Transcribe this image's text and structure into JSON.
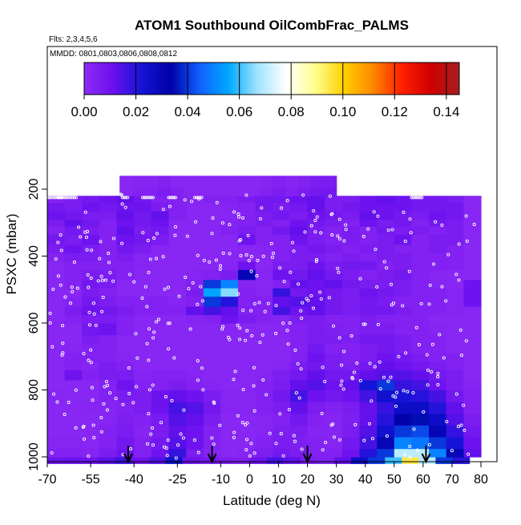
{
  "chart_data": {
    "type": "heatmap",
    "title": "ATOM1 Southbound OilCombFrac_PALMS",
    "subtitle_flights": "Flts: 2,3,4,5,6",
    "subtitle_dates": "MMDD: 0801,0803,0806,0808,0812",
    "xlabel": "Latitude (deg N)",
    "ylabel": "PSXC (mbar)",
    "xlim": [
      -70,
      82
    ],
    "ylim": [
      1020,
      80
    ],
    "x_ticks": [
      -70,
      -55,
      -40,
      -25,
      -10,
      0,
      10,
      20,
      30,
      40,
      50,
      60,
      70,
      80
    ],
    "y_ticks": [
      200,
      400,
      600,
      800,
      1000
    ],
    "colorbar": {
      "range": [
        0,
        0.145
      ],
      "ticks": [
        0.0,
        0.02,
        0.04,
        0.06,
        0.08,
        0.1,
        0.12,
        0.14
      ],
      "tick_labels": [
        "0.00",
        "0.02",
        "0.04",
        "0.06",
        "0.08",
        "0.10",
        "0.12",
        "0.14"
      ]
    },
    "colormap": [
      "#8f2bf5",
      "#6a10ee",
      "#1414d6",
      "#0000a8",
      "#1060ff",
      "#00a8ff",
      "#a0e4ff",
      "#ffffff",
      "#ffff90",
      "#ffd000",
      "#ff8800",
      "#ff2000",
      "#d00000",
      "#a31e1e"
    ],
    "levels_mbar": [
      160,
      220,
      240,
      265,
      290,
      310,
      335,
      365,
      390,
      415,
      440,
      460,
      485,
      515,
      540,
      570,
      600,
      625,
      650,
      675,
      700,
      725,
      755,
      780,
      805,
      835,
      860,
      885,
      915,
      940,
      965,
      990,
      1015
    ],
    "lat_grid": [
      -70,
      -62,
      -55,
      -48,
      -42,
      -36,
      -30,
      -24,
      -18,
      -12,
      -6,
      0,
      6,
      12,
      18,
      24,
      30,
      36,
      42,
      48,
      54,
      60,
      66,
      72,
      78
    ],
    "rows": [
      {
        "p": [
          1000,
          1020
        ],
        "lat": [
          -70,
          76
        ],
        "v": [
          0.01,
          0.011,
          0.01,
          0.013,
          0.017,
          0.01,
          0.014,
          0.024,
          0.01,
          0.008,
          0.006,
          0.005,
          0.01,
          0.016,
          0.012,
          0.006,
          0.005,
          0.012,
          0.026,
          0.04,
          0.06,
          0.095,
          0.07,
          0.04,
          0.02
        ]
      },
      {
        "p": [
          975,
          1000
        ],
        "lat": [
          -70,
          80
        ],
        "v": [
          0.004,
          0.004,
          0.003,
          0.006,
          0.01,
          0.004,
          0.01,
          0.018,
          0.006,
          0.003,
          0.002,
          0.003,
          0.005,
          0.008,
          0.006,
          0.004,
          0.004,
          0.01,
          0.02,
          0.04,
          0.07,
          0.07,
          0.05,
          0.03,
          0.012
        ]
      },
      {
        "p": [
          940,
          975
        ],
        "lat": [
          -70,
          80
        ],
        "v": [
          0.003,
          0.003,
          0.002,
          0.004,
          0.008,
          0.004,
          0.008,
          0.014,
          0.01,
          0.004,
          0.002,
          0.002,
          0.004,
          0.006,
          0.005,
          0.004,
          0.003,
          0.008,
          0.016,
          0.03,
          0.05,
          0.048,
          0.04,
          0.022,
          0.01
        ]
      },
      {
        "p": [
          905,
          940
        ],
        "lat": [
          -70,
          80
        ],
        "v": [
          0.002,
          0.002,
          0.002,
          0.004,
          0.006,
          0.003,
          0.006,
          0.012,
          0.01,
          0.004,
          0.002,
          0.002,
          0.003,
          0.005,
          0.006,
          0.003,
          0.003,
          0.006,
          0.014,
          0.024,
          0.04,
          0.042,
          0.03,
          0.018,
          0.008
        ]
      },
      {
        "p": [
          870,
          905
        ],
        "lat": [
          -70,
          80
        ],
        "v": [
          0.002,
          0.002,
          0.002,
          0.003,
          0.005,
          0.004,
          0.007,
          0.014,
          0.012,
          0.006,
          0.002,
          0.002,
          0.003,
          0.004,
          0.008,
          0.004,
          0.003,
          0.005,
          0.012,
          0.02,
          0.032,
          0.035,
          0.026,
          0.014,
          0.006
        ]
      },
      {
        "p": [
          835,
          870
        ],
        "lat": [
          -70,
          80
        ],
        "v": [
          0.002,
          0.002,
          0.003,
          0.003,
          0.004,
          0.006,
          0.01,
          0.016,
          0.014,
          0.008,
          0.003,
          0.003,
          0.004,
          0.006,
          0.012,
          0.006,
          0.004,
          0.006,
          0.012,
          0.018,
          0.026,
          0.026,
          0.02,
          0.012,
          0.004
        ]
      },
      {
        "p": [
          800,
          835
        ],
        "lat": [
          -70,
          80
        ],
        "v": [
          0.003,
          0.002,
          0.002,
          0.004,
          0.006,
          0.006,
          0.01,
          0.012,
          0.01,
          0.006,
          0.003,
          0.003,
          0.004,
          0.008,
          0.016,
          0.01,
          0.008,
          0.01,
          0.016,
          0.024,
          0.022,
          0.02,
          0.016,
          0.008,
          0.004
        ]
      },
      {
        "p": [
          770,
          800
        ],
        "lat": [
          -70,
          80
        ],
        "v": [
          0.002,
          0.002,
          0.002,
          0.004,
          0.01,
          0.004,
          0.004,
          0.006,
          0.004,
          0.003,
          0.002,
          0.002,
          0.004,
          0.006,
          0.012,
          0.014,
          0.01,
          0.012,
          0.022,
          0.04,
          0.018,
          0.016,
          0.01,
          0.006,
          0.003
        ]
      },
      {
        "p": [
          740,
          770
        ],
        "lat": [
          -70,
          80
        ],
        "v": [
          0.002,
          0.01,
          0.004,
          0.006,
          0.006,
          0.003,
          0.004,
          0.004,
          0.003,
          0.002,
          0.002,
          0.002,
          0.003,
          0.005,
          0.008,
          0.012,
          0.008,
          0.008,
          0.012,
          0.014,
          0.014,
          0.012,
          0.008,
          0.006,
          0.002
        ]
      },
      {
        "p": [
          715,
          740
        ],
        "lat": [
          -70,
          80
        ],
        "v": [
          0.002,
          0.004,
          0.003,
          0.006,
          0.004,
          0.002,
          0.002,
          0.002,
          0.002,
          0.002,
          0.002,
          0.002,
          0.002,
          0.003,
          0.006,
          0.008,
          0.006,
          0.005,
          0.008,
          0.012,
          0.01,
          0.008,
          0.006,
          0.004,
          0.002
        ]
      },
      {
        "p": [
          690,
          715
        ],
        "lat": [
          -70,
          80
        ],
        "v": [
          0.002,
          0.004,
          0.004,
          0.004,
          0.003,
          0.002,
          0.002,
          0.002,
          0.002,
          0.002,
          0.002,
          0.002,
          0.002,
          0.002,
          0.004,
          0.01,
          0.006,
          0.004,
          0.006,
          0.01,
          0.008,
          0.006,
          0.004,
          0.004,
          0.002
        ]
      },
      {
        "p": [
          660,
          690
        ],
        "lat": [
          -70,
          80
        ],
        "v": [
          0.002,
          0.003,
          0.004,
          0.004,
          0.002,
          0.002,
          0.002,
          0.002,
          0.002,
          0.002,
          0.002,
          0.002,
          0.002,
          0.002,
          0.004,
          0.008,
          0.004,
          0.004,
          0.006,
          0.008,
          0.006,
          0.004,
          0.004,
          0.002,
          0.002
        ]
      },
      {
        "p": [
          635,
          660
        ],
        "lat": [
          -70,
          80
        ],
        "v": [
          0.002,
          0.002,
          0.006,
          0.004,
          0.002,
          0.002,
          0.002,
          0.002,
          0.002,
          0.002,
          0.002,
          0.002,
          0.002,
          0.002,
          0.004,
          0.006,
          0.006,
          0.005,
          0.008,
          0.008,
          0.006,
          0.004,
          0.004,
          0.002,
          0.002
        ]
      },
      {
        "p": [
          600,
          635
        ],
        "lat": [
          -70,
          80
        ],
        "v": [
          0.002,
          0.002,
          0.008,
          0.01,
          0.004,
          0.002,
          0.002,
          0.002,
          0.002,
          0.002,
          0.002,
          0.002,
          0.002,
          0.002,
          0.004,
          0.006,
          0.005,
          0.004,
          0.006,
          0.006,
          0.004,
          0.004,
          0.003,
          0.002,
          0.002
        ]
      },
      {
        "p": [
          575,
          600
        ],
        "lat": [
          -70,
          80
        ],
        "v": [
          0.002,
          0.004,
          0.006,
          0.006,
          0.004,
          0.002,
          0.002,
          0.002,
          0.003,
          0.004,
          0.01,
          0.006,
          0.004,
          0.003,
          0.006,
          0.006,
          0.004,
          0.004,
          0.006,
          0.004,
          0.004,
          0.004,
          0.002,
          0.002,
          0.002
        ]
      },
      {
        "p": [
          550,
          575
        ],
        "lat": [
          -70,
          80
        ],
        "v": [
          0.002,
          0.006,
          0.01,
          0.008,
          0.006,
          0.004,
          0.004,
          0.004,
          0.012,
          0.016,
          0.012,
          0.004,
          0.004,
          0.016,
          0.01,
          0.012,
          0.008,
          0.006,
          0.008,
          0.008,
          0.006,
          0.004,
          0.004,
          0.003,
          0.002
        ]
      },
      {
        "p": [
          520,
          550
        ],
        "lat": [
          -70,
          80
        ],
        "v": [
          0.002,
          0.004,
          0.008,
          0.006,
          0.004,
          0.004,
          0.004,
          0.003,
          0.004,
          0.04,
          0.02,
          0.004,
          0.004,
          0.012,
          0.014,
          0.012,
          0.008,
          0.006,
          0.008,
          0.006,
          0.004,
          0.004,
          0.004,
          0.003,
          0.01
        ]
      },
      {
        "p": [
          495,
          520
        ],
        "lat": [
          -70,
          80
        ],
        "v": [
          0.002,
          0.002,
          0.006,
          0.004,
          0.002,
          0.002,
          0.002,
          0.002,
          0.006,
          0.055,
          0.065,
          0.004,
          0.003,
          0.018,
          0.008,
          0.01,
          0.008,
          0.006,
          0.01,
          0.008,
          0.006,
          0.004,
          0.004,
          0.003,
          0.01
        ]
      },
      {
        "p": [
          470,
          495
        ],
        "lat": [
          -70,
          80
        ],
        "v": [
          0.002,
          0.004,
          0.008,
          0.006,
          0.002,
          0.002,
          0.002,
          0.002,
          0.004,
          0.04,
          0.05,
          0.003,
          0.002,
          0.004,
          0.012,
          0.01,
          0.012,
          0.008,
          0.006,
          0.006,
          0.006,
          0.004,
          0.003,
          0.002,
          0.01
        ]
      },
      {
        "p": [
          440,
          470
        ],
        "lat": [
          -70,
          80
        ],
        "v": [
          0.002,
          0.004,
          0.006,
          0.006,
          0.004,
          0.002,
          0.002,
          0.002,
          0.003,
          0.004,
          0.006,
          0.03,
          0.003,
          0.01,
          0.008,
          0.012,
          0.008,
          0.006,
          0.004,
          0.006,
          0.008,
          0.004,
          0.003,
          0.002,
          0.002
        ]
      },
      {
        "p": [
          415,
          440
        ],
        "lat": [
          -70,
          80
        ],
        "v": [
          0.002,
          0.004,
          0.004,
          0.004,
          0.004,
          0.003,
          0.002,
          0.002,
          0.002,
          0.002,
          0.003,
          0.01,
          0.002,
          0.006,
          0.006,
          0.01,
          0.006,
          0.008,
          0.008,
          0.004,
          0.006,
          0.004,
          0.004,
          0.004,
          0.002
        ]
      },
      {
        "p": [
          390,
          415
        ],
        "lat": [
          -70,
          80
        ],
        "v": [
          0.004,
          0.006,
          0.006,
          0.004,
          0.006,
          0.003,
          0.002,
          0.002,
          0.002,
          0.002,
          0.002,
          0.002,
          0.002,
          0.004,
          0.006,
          0.006,
          0.004,
          0.006,
          0.004,
          0.006,
          0.006,
          0.004,
          0.004,
          0.004,
          0.002
        ]
      },
      {
        "p": [
          365,
          390
        ],
        "lat": [
          -70,
          80
        ],
        "v": [
          0.006,
          0.01,
          0.006,
          0.004,
          0.008,
          0.006,
          0.003,
          0.002,
          0.002,
          0.002,
          0.002,
          0.002,
          0.003,
          0.004,
          0.006,
          0.008,
          0.006,
          0.004,
          0.006,
          0.006,
          0.004,
          0.004,
          0.006,
          0.004,
          0.002
        ]
      },
      {
        "p": [
          335,
          365
        ],
        "lat": [
          -70,
          80
        ],
        "v": [
          0.008,
          0.006,
          0.01,
          0.004,
          0.01,
          0.008,
          0.006,
          0.002,
          0.002,
          0.002,
          0.002,
          0.01,
          0.004,
          0.004,
          0.01,
          0.006,
          0.004,
          0.006,
          0.004,
          0.006,
          0.01,
          0.004,
          0.006,
          0.006,
          0.002
        ]
      },
      {
        "p": [
          310,
          335
        ],
        "lat": [
          -70,
          80
        ],
        "v": [
          0.004,
          0.008,
          0.006,
          0.004,
          0.012,
          0.006,
          0.008,
          0.002,
          0.002,
          0.002,
          0.004,
          0.006,
          0.004,
          0.008,
          0.012,
          0.006,
          0.004,
          0.006,
          0.004,
          0.008,
          0.006,
          0.006,
          0.004,
          0.006,
          0.002
        ]
      },
      {
        "p": [
          290,
          310
        ],
        "lat": [
          -70,
          80
        ],
        "v": [
          0.006,
          0.012,
          0.008,
          0.004,
          0.01,
          0.008,
          0.01,
          0.002,
          0.002,
          0.002,
          0.003,
          0.004,
          0.006,
          0.004,
          0.01,
          0.008,
          0.006,
          0.004,
          0.01,
          0.006,
          0.008,
          0.004,
          0.008,
          0.006,
          0.002
        ]
      },
      {
        "p": [
          265,
          290
        ],
        "lat": [
          -70,
          80
        ],
        "v": [
          0.01,
          0.008,
          0.006,
          0.006,
          0.012,
          0.008,
          0.012,
          0.004,
          0.002,
          0.002,
          0.002,
          0.004,
          0.006,
          0.008,
          0.006,
          0.01,
          0.008,
          0.006,
          0.012,
          0.01,
          0.008,
          0.006,
          0.01,
          0.008,
          0.002
        ]
      },
      {
        "p": [
          240,
          265
        ],
        "lat": [
          -70,
          80
        ],
        "v": [
          0.008,
          0.006,
          0.01,
          0.008,
          0.01,
          0.01,
          0.006,
          0.004,
          0.002,
          0.002,
          0.003,
          0.004,
          0.008,
          0.006,
          0.008,
          0.012,
          0.006,
          0.008,
          0.01,
          0.01,
          0.01,
          0.008,
          0.008,
          0.008,
          0.002
        ]
      },
      {
        "p": [
          220,
          240
        ],
        "lat": [
          -70,
          80
        ],
        "v": [
          0.004,
          0.006,
          0.008,
          0.01,
          0.012,
          0.008,
          0.004,
          0.004,
          0.003,
          0.004,
          0.004,
          0.006,
          0.008,
          0.008,
          0.01,
          0.012,
          0.006,
          0.006,
          0.01,
          0.012,
          0.01,
          0.008,
          0.008,
          0.006,
          0.002
        ]
      },
      {
        "p": [
          195,
          220
        ],
        "lat": [
          -45,
          30
        ],
        "v": [
          0.002,
          0.004,
          0.004,
          0.006,
          0.004,
          0.002,
          0.002,
          0.002,
          0.002,
          0.002,
          0.002,
          0.004,
          0.006,
          0.004,
          0.006,
          0.008,
          0.008
        ]
      },
      {
        "p": [
          160,
          195
        ],
        "lat": [
          -45,
          30
        ],
        "v": [
          0.002,
          0.003,
          0.003,
          0.004,
          0.002,
          0.002,
          0.002,
          0.002,
          0.002,
          0.002,
          0.002,
          0.003,
          0.004,
          0.003,
          0.004,
          0.006,
          0.006
        ]
      }
    ],
    "row_lat_override": {
      "0": [
        -70,
        76
      ],
      "1": [
        -70,
        80
      ],
      "2": [
        -70,
        80
      ]
    },
    "profile_arrows_lat": [
      -42,
      -13,
      20,
      61
    ],
    "marker_count_note": "white open circles mark observations"
  }
}
